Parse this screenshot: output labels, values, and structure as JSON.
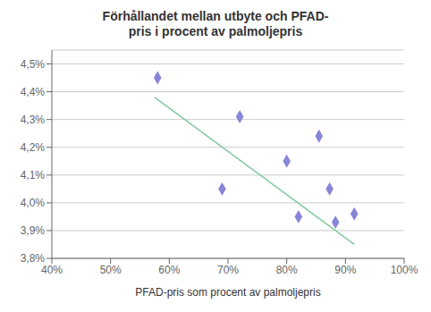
{
  "chart_data": {
    "type": "scatter",
    "title": "Förhållandet mellan utbyte och PFAD-\npris i procent av palmoljepris",
    "xlabel": "PFAD-pris som procent av palmoljepris",
    "series": [
      {
        "type": "scatter",
        "marker": "diamond",
        "x": [
          0.58,
          0.69,
          0.72,
          0.8,
          0.82,
          0.855,
          0.873,
          0.883,
          0.915
        ],
        "values": [
          0.0445,
          0.0405,
          0.0431,
          0.0415,
          0.0395,
          0.0424,
          0.0405,
          0.0393,
          0.0396
        ]
      },
      {
        "type": "line",
        "line_style": "solid",
        "x": [
          0.575,
          0.915
        ],
        "values": [
          0.0438,
          0.0385
        ]
      }
    ],
    "xlim": [
      0.4,
      1.0
    ],
    "ylim": [
      0.038,
      0.0455
    ],
    "xticks": [
      {
        "value": 0.4,
        "label": "40%"
      },
      {
        "value": 0.5,
        "label": "50%"
      },
      {
        "value": 0.6,
        "label": "60%"
      },
      {
        "value": 0.7,
        "label": "70%"
      },
      {
        "value": 0.8,
        "label": "80%"
      },
      {
        "value": 0.9,
        "label": "90%"
      },
      {
        "value": 1.0,
        "label": "100%"
      }
    ],
    "yticks": [
      {
        "value": 0.038,
        "label": "3,8%"
      },
      {
        "value": 0.039,
        "label": "3,9%"
      },
      {
        "value": 0.04,
        "label": "4,0%"
      },
      {
        "value": 0.041,
        "label": "4,1%"
      },
      {
        "value": 0.042,
        "label": "4,2%"
      },
      {
        "value": 0.043,
        "label": "4,3%"
      },
      {
        "value": 0.044,
        "label": "4,4%"
      },
      {
        "value": 0.045,
        "label": "4,5%"
      }
    ],
    "grid": true
  }
}
